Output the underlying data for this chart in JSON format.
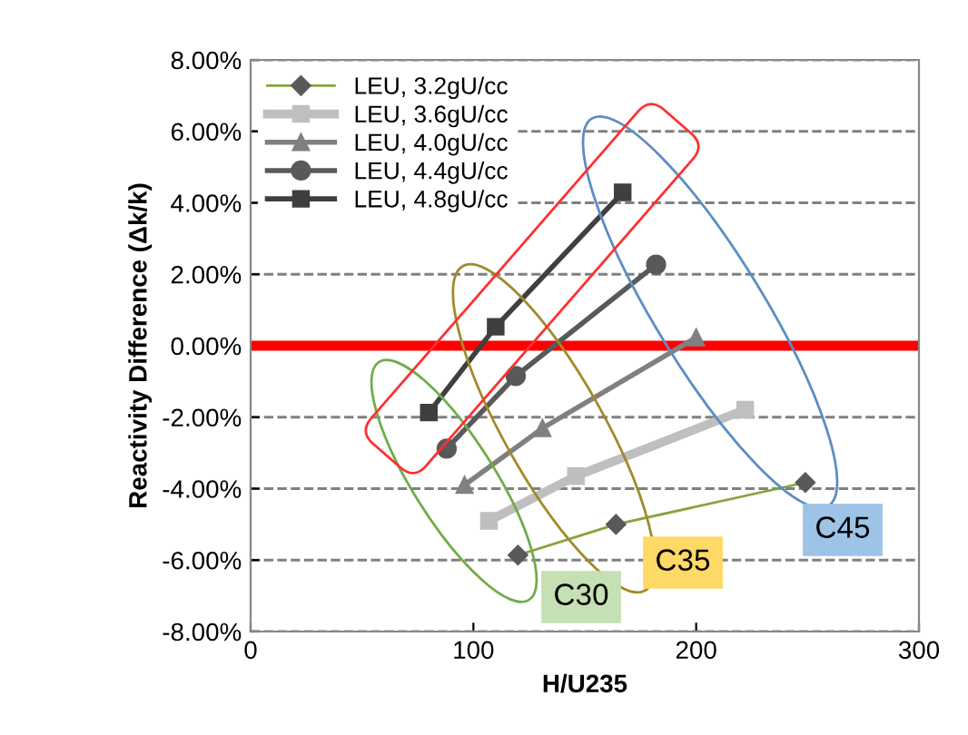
{
  "chart_data": {
    "type": "line",
    "xlabel": "H/U235",
    "ylabel": "Reactivity Difference (Δk/k)",
    "series": [
      {
        "name": "LEU, 3.2gU/cc",
        "color": "#86a33c",
        "marker": "diamond",
        "x": [
          120,
          164,
          249
        ],
        "values": [
          -5.86,
          -5.0,
          -3.83
        ]
      },
      {
        "name": "LEU, 3.6gU/cc",
        "color": "#bfbfbf",
        "marker": "square",
        "x": [
          107,
          146,
          222
        ],
        "values": [
          -4.9,
          -3.65,
          -1.79
        ]
      },
      {
        "name": "LEU, 4.0gU/cc",
        "color": "#808080",
        "marker": "triangle",
        "x": [
          96,
          131,
          200
        ],
        "values": [
          -3.9,
          -2.31,
          0.23
        ]
      },
      {
        "name": "LEU, 4.4gU/cc",
        "color": "#595959",
        "marker": "circle",
        "x": [
          88,
          119,
          182
        ],
        "values": [
          -2.88,
          -0.85,
          2.27
        ]
      },
      {
        "name": "LEU, 4.8gU/cc",
        "color": "#3f3f3f",
        "marker": "square",
        "x": [
          80,
          110,
          167
        ],
        "values": [
          -1.87,
          0.53,
          4.29
        ]
      }
    ],
    "xlim": [
      0,
      300
    ],
    "xticks": [
      0,
      100,
      200,
      300
    ],
    "ylim": [
      -8,
      8
    ],
    "yticks": [
      {
        "value": -8,
        "label": "-8.00%"
      },
      {
        "value": -6,
        "label": "-6.00%"
      },
      {
        "value": -4,
        "label": "-4.00%"
      },
      {
        "value": -2,
        "label": "-2.00%"
      },
      {
        "value": 0,
        "label": "0.00%"
      },
      {
        "value": 2,
        "label": "2.00%"
      },
      {
        "value": 4,
        "label": "4.00%"
      },
      {
        "value": 6,
        "label": "6.00%"
      },
      {
        "value": 8,
        "label": "8.00%"
      }
    ],
    "ref_lines": [
      {
        "axis": "y",
        "value": 0,
        "color": "#ff0000"
      }
    ],
    "annotations": [
      "C30",
      "C35",
      "C45"
    ],
    "grid": "y",
    "legend": "top left",
    "line_style": "solid"
  }
}
